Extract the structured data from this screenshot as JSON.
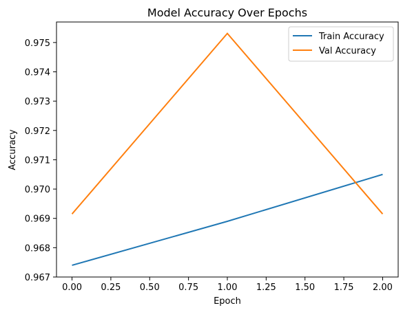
{
  "chart_data": {
    "type": "line",
    "title": "Model Accuracy Over Epochs",
    "xlabel": "Epoch",
    "ylabel": "Accuracy",
    "x": [
      0,
      1,
      2
    ],
    "series": [
      {
        "name": "Train Accuracy",
        "values": [
          0.9674,
          0.9689,
          0.9705
        ],
        "color": "#1f77b4"
      },
      {
        "name": "Val Accuracy",
        "values": [
          0.96915,
          0.97531,
          0.96915
        ],
        "color": "#ff7f0e"
      }
    ],
    "xlim": [
      -0.1,
      2.1
    ],
    "ylim": [
      0.967,
      0.9757
    ],
    "xticks": [
      0,
      0.25,
      0.5,
      0.75,
      1,
      1.25,
      1.5,
      1.75,
      2
    ],
    "xtick_labels": [
      "0.00",
      "0.25",
      "0.50",
      "0.75",
      "1.00",
      "1.25",
      "1.50",
      "1.75",
      "2.00"
    ],
    "yticks": [
      0.967,
      0.968,
      0.969,
      0.97,
      0.971,
      0.972,
      0.973,
      0.974,
      0.975
    ],
    "ytick_labels": [
      "0.967",
      "0.968",
      "0.969",
      "0.970",
      "0.971",
      "0.972",
      "0.973",
      "0.974",
      "0.975"
    ],
    "grid": false,
    "legend_position": "top-right"
  }
}
